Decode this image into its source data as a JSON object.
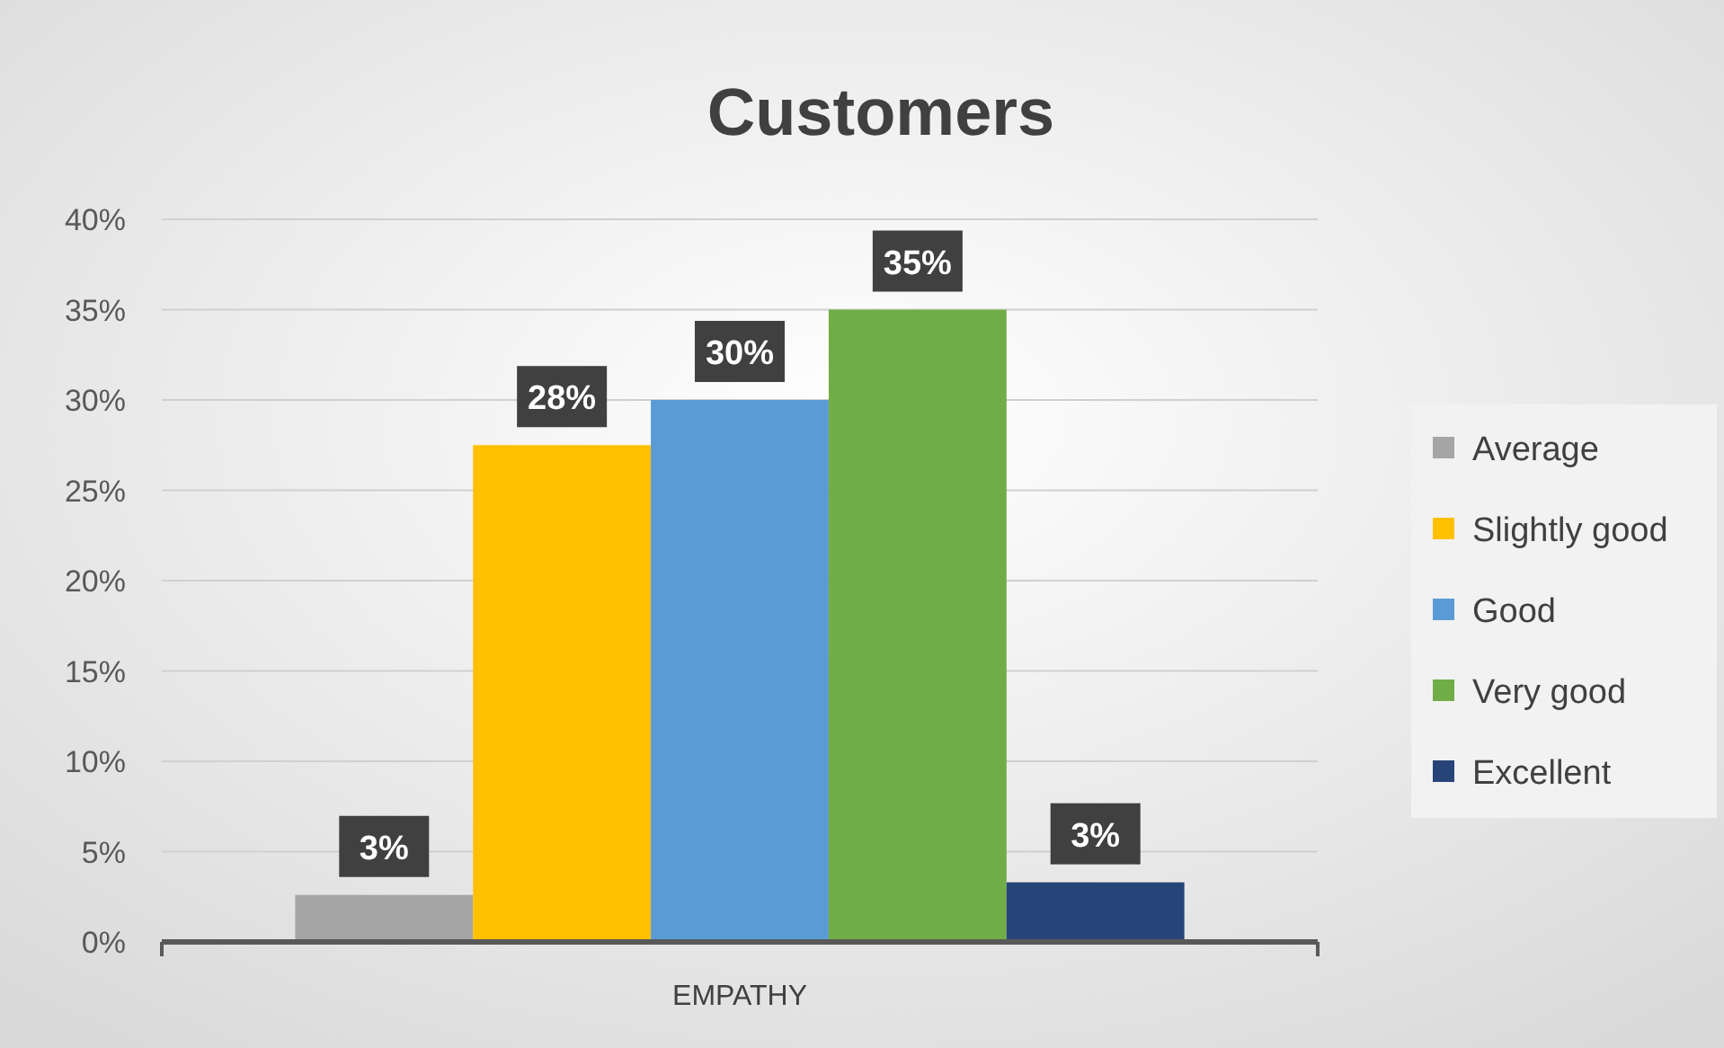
{
  "chart_data": {
    "type": "bar",
    "title": "Customers",
    "categories": [
      "EMPATHY"
    ],
    "series": [
      {
        "name": "Average",
        "color": "#a5a5a5",
        "values": [
          2.6
        ],
        "value_labels": [
          "3%"
        ]
      },
      {
        "name": "Slightly good",
        "color": "#ffc000",
        "values": [
          27.5
        ],
        "value_labels": [
          "28%"
        ]
      },
      {
        "name": "Good",
        "color": "#5b9bd5",
        "values": [
          30
        ],
        "value_labels": [
          "30%"
        ]
      },
      {
        "name": "Very good",
        "color": "#70ad47",
        "values": [
          35
        ],
        "value_labels": [
          "35%"
        ]
      },
      {
        "name": "Excellent",
        "color": "#264478",
        "values": [
          3.3
        ],
        "value_labels": [
          "3%"
        ]
      }
    ],
    "ylim": [
      0,
      40
    ],
    "yticks": [
      {
        "value": 0,
        "label": "0%"
      },
      {
        "value": 5,
        "label": "5%"
      },
      {
        "value": 10,
        "label": "10%"
      },
      {
        "value": 15,
        "label": "15%"
      },
      {
        "value": 20,
        "label": "20%"
      },
      {
        "value": 25,
        "label": "25%"
      },
      {
        "value": 30,
        "label": "30%"
      },
      {
        "value": 35,
        "label": "35%"
      },
      {
        "value": 40,
        "label": "40%"
      }
    ],
    "grid": "y",
    "legend": "right"
  }
}
